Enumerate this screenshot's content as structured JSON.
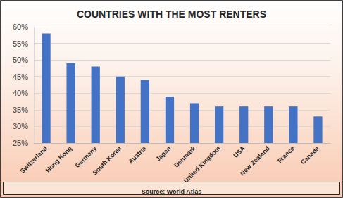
{
  "chart_data": {
    "type": "bar",
    "title": "COUNTRIES WITH THE MOST RENTERS",
    "categories": [
      "Switzerland",
      "Hong Kong",
      "Germany",
      "South Korea",
      "Austria",
      "Japan",
      "Denmark",
      "United Kingdom",
      "USA",
      "New Zealand",
      "France",
      "Canada"
    ],
    "values": [
      58,
      49,
      48,
      45,
      44,
      39,
      37,
      36,
      36,
      36,
      36,
      33
    ],
    "color": "#4472c4",
    "ylim": [
      25,
      60
    ],
    "yticks": [
      {
        "value": 25,
        "label": "25%"
      },
      {
        "value": 30,
        "label": "30%"
      },
      {
        "value": 35,
        "label": "35%"
      },
      {
        "value": 40,
        "label": "40%"
      },
      {
        "value": 45,
        "label": "45%"
      },
      {
        "value": 50,
        "label": "50%"
      },
      {
        "value": 55,
        "label": "55%"
      },
      {
        "value": 60,
        "label": "60%"
      }
    ],
    "grid": true,
    "source": "Source: World Atlas"
  }
}
